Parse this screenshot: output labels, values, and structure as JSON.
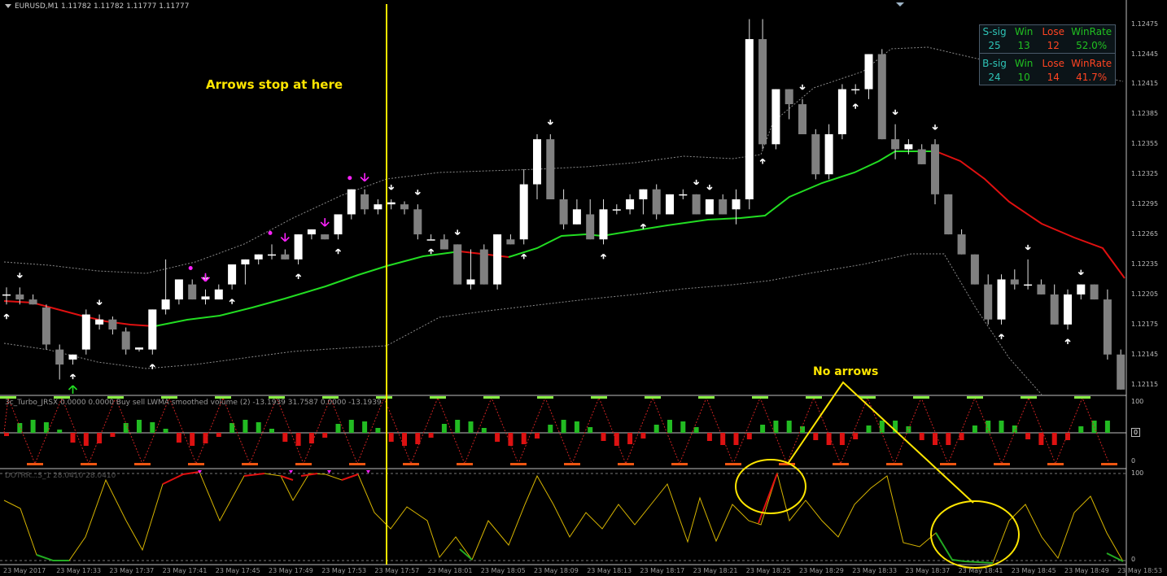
{
  "chart_title": "EURUSD,M1  1.11782 1.11782 1.11777 1.11777",
  "indicator1_title": "3c_Turbo_JRSX 0.0000 0.0000  Buy sell LWMA smoothed volume (2) -13.1939 31.7587 0.0000 -13.1939",
  "indicator2_title": "DOTRR...S_1 28.0410 28.0410",
  "annotations": {
    "arrows_stop": "Arrows stop at here",
    "no_arrows": "No arrows"
  },
  "stats": {
    "sell_header": [
      "S-sig",
      "Win",
      "Lose",
      "WinRate"
    ],
    "sell_values": [
      "25",
      "13",
      "12",
      "52.0%"
    ],
    "buy_header": [
      "B-sig",
      "Win",
      "Lose",
      "WinRate"
    ],
    "buy_values": [
      "24",
      "10",
      "14",
      "41.7%"
    ]
  },
  "price_axis": [
    "1.12475",
    "1.12445",
    "1.12415",
    "1.12385",
    "1.12355",
    "1.12325",
    "1.12295",
    "1.12265",
    "1.12235",
    "1.12205",
    "1.12175",
    "1.12145",
    "1.12115"
  ],
  "indicator1_axis": [
    "100",
    "0",
    "0"
  ],
  "indicator2_axis": [
    "100",
    "0"
  ],
  "time_axis": [
    "23 May 2017",
    "23 May 17:33",
    "23 May 17:37",
    "23 May 17:41",
    "23 May 17:45",
    "23 May 17:49",
    "23 May 17:53",
    "23 May 17:57",
    "23 May 18:01",
    "23 May 18:05",
    "23 May 18:09",
    "23 May 18:13",
    "23 May 18:17",
    "23 May 18:21",
    "23 May 18:25",
    "23 May 18:29",
    "23 May 18:33",
    "23 May 18:37",
    "23 May 18:41",
    "23 May 18:45",
    "23 May 18:49",
    "23 May 18:53"
  ],
  "colors": {
    "bull_candle": "#ffffff",
    "bear_candle": "#808080",
    "ma_up": "#22dd22",
    "ma_down": "#e01010",
    "band": "#8a8a8a",
    "signal_arrow": "#ffffff",
    "magenta_arrow": "#ff22ff",
    "green_arrow": "#22dd22",
    "osc_line": "#d6b400",
    "annotation": "#ffe600",
    "vertical_marker": "#ffe600"
  },
  "chart_data": {
    "type": "candlestick",
    "symbol": "EURUSD",
    "timeframe": "M1",
    "ylim": [
      1.12105,
      1.12495
    ],
    "candles": [
      [
        1.12205,
        1.12212,
        1.12195,
        1.12205
      ],
      [
        1.12205,
        1.12212,
        1.12195,
        1.122
      ],
      [
        1.122,
        1.12205,
        1.12195,
        1.12195
      ],
      [
        1.12192,
        1.12195,
        1.1215,
        1.12155
      ],
      [
        1.1215,
        1.12155,
        1.1212,
        1.12135
      ],
      [
        1.1214,
        1.12145,
        1.12135,
        1.12145
      ],
      [
        1.1215,
        1.1219,
        1.12145,
        1.12185
      ],
      [
        1.12175,
        1.12185,
        1.1217,
        1.1218
      ],
      [
        1.1218,
        1.12183,
        1.12165,
        1.1217
      ],
      [
        1.12168,
        1.12172,
        1.12145,
        1.1215
      ],
      [
        1.1215,
        1.12152,
        1.12148,
        1.12152
      ],
      [
        1.1215,
        1.1219,
        1.12145,
        1.1219
      ],
      [
        1.1219,
        1.1224,
        1.12185,
        1.122
      ],
      [
        1.122,
        1.1222,
        1.12195,
        1.1222
      ],
      [
        1.12215,
        1.1222,
        1.122,
        1.122
      ],
      [
        1.122,
        1.1221,
        1.12195,
        1.12203
      ],
      [
        1.122,
        1.12215,
        1.122,
        1.1221
      ],
      [
        1.12215,
        1.12235,
        1.1221,
        1.12235
      ],
      [
        1.12235,
        1.1224,
        1.12215,
        1.1224
      ],
      [
        1.1224,
        1.12245,
        1.12235,
        1.12245
      ],
      [
        1.12245,
        1.12255,
        1.1224,
        1.12245
      ],
      [
        1.12245,
        1.1225,
        1.1224,
        1.1224
      ],
      [
        1.1224,
        1.12265,
        1.12235,
        1.12265
      ],
      [
        1.12265,
        1.1227,
        1.1226,
        1.1227
      ],
      [
        1.12265,
        1.12265,
        1.1226,
        1.1226
      ],
      [
        1.12265,
        1.12285,
        1.1226,
        1.12285
      ],
      [
        1.12285,
        1.1231,
        1.1228,
        1.1231
      ],
      [
        1.12305,
        1.1231,
        1.12285,
        1.1229
      ],
      [
        1.1229,
        1.123,
        1.12285,
        1.12295
      ],
      [
        1.12295,
        1.123,
        1.1229,
        1.12297
      ],
      [
        1.12295,
        1.12298,
        1.12285,
        1.1229
      ],
      [
        1.1229,
        1.12295,
        1.1226,
        1.12265
      ],
      [
        1.1226,
        1.12265,
        1.1226,
        1.1226
      ],
      [
        1.1226,
        1.12265,
        1.1225,
        1.1225
      ],
      [
        1.12255,
        1.12255,
        1.12215,
        1.12215
      ],
      [
        1.12215,
        1.1225,
        1.1221,
        1.1222
      ],
      [
        1.1225,
        1.12255,
        1.12215,
        1.12215
      ],
      [
        1.12215,
        1.12265,
        1.1221,
        1.12265
      ],
      [
        1.1226,
        1.12265,
        1.12255,
        1.12255
      ],
      [
        1.1226,
        1.1233,
        1.12255,
        1.12315
      ],
      [
        1.12315,
        1.12365,
        1.123,
        1.1236
      ],
      [
        1.1236,
        1.12365,
        1.123,
        1.123
      ],
      [
        1.123,
        1.1231,
        1.1227,
        1.12275
      ],
      [
        1.12275,
        1.123,
        1.12275,
        1.1229
      ],
      [
        1.12285,
        1.123,
        1.1226,
        1.1226
      ],
      [
        1.1226,
        1.123,
        1.12255,
        1.1229
      ],
      [
        1.1229,
        1.12295,
        1.12285,
        1.1229
      ],
      [
        1.1229,
        1.12305,
        1.12285,
        1.123
      ],
      [
        1.123,
        1.1231,
        1.12285,
        1.1231
      ],
      [
        1.1231,
        1.12315,
        1.1228,
        1.12285
      ],
      [
        1.12285,
        1.12305,
        1.12285,
        1.12305
      ],
      [
        1.12305,
        1.1231,
        1.123,
        1.12305
      ],
      [
        1.12305,
        1.12305,
        1.12285,
        1.12285
      ],
      [
        1.12285,
        1.123,
        1.12285,
        1.123
      ],
      [
        1.123,
        1.12305,
        1.12285,
        1.12285
      ],
      [
        1.1229,
        1.1231,
        1.12275,
        1.123
      ],
      [
        1.123,
        1.1248,
        1.1229,
        1.1246
      ],
      [
        1.1246,
        1.1248,
        1.1235,
        1.12355
      ],
      [
        1.12355,
        1.1241,
        1.1235,
        1.1241
      ],
      [
        1.1241,
        1.1241,
        1.1238,
        1.12395
      ],
      [
        1.12395,
        1.124,
        1.12365,
        1.12365
      ],
      [
        1.12365,
        1.1237,
        1.1232,
        1.12325
      ],
      [
        1.12325,
        1.12375,
        1.1232,
        1.12365
      ],
      [
        1.12365,
        1.12415,
        1.1236,
        1.1241
      ],
      [
        1.1241,
        1.12415,
        1.12405,
        1.1241
      ],
      [
        1.1241,
        1.12445,
        1.124,
        1.12445
      ],
      [
        1.12445,
        1.1245,
        1.1236,
        1.1236
      ],
      [
        1.1236,
        1.12375,
        1.1234,
        1.1235
      ],
      [
        1.1235,
        1.1236,
        1.12345,
        1.12355
      ],
      [
        1.1235,
        1.12355,
        1.12335,
        1.12335
      ],
      [
        1.12355,
        1.1236,
        1.12295,
        1.12305
      ],
      [
        1.12305,
        1.12305,
        1.12265,
        1.12265
      ],
      [
        1.12265,
        1.1227,
        1.12245,
        1.12245
      ],
      [
        1.12245,
        1.12245,
        1.12215,
        1.12215
      ],
      [
        1.12215,
        1.12225,
        1.12175,
        1.1218
      ],
      [
        1.1218,
        1.12225,
        1.12175,
        1.1222
      ],
      [
        1.1222,
        1.1223,
        1.1221,
        1.12215
      ],
      [
        1.12215,
        1.1224,
        1.1221,
        1.12215
      ],
      [
        1.12215,
        1.1222,
        1.12205,
        1.12205
      ],
      [
        1.12205,
        1.12215,
        1.12175,
        1.12175
      ],
      [
        1.12175,
        1.1221,
        1.1217,
        1.12205
      ],
      [
        1.12205,
        1.12215,
        1.122,
        1.12215
      ],
      [
        1.12215,
        1.12215,
        1.122,
        1.122
      ],
      [
        1.122,
        1.1221,
        1.1214,
        1.12145
      ],
      [
        1.12145,
        1.1215,
        1.1211,
        1.1211
      ]
    ],
    "vertical_marker_index": 29.5
  }
}
